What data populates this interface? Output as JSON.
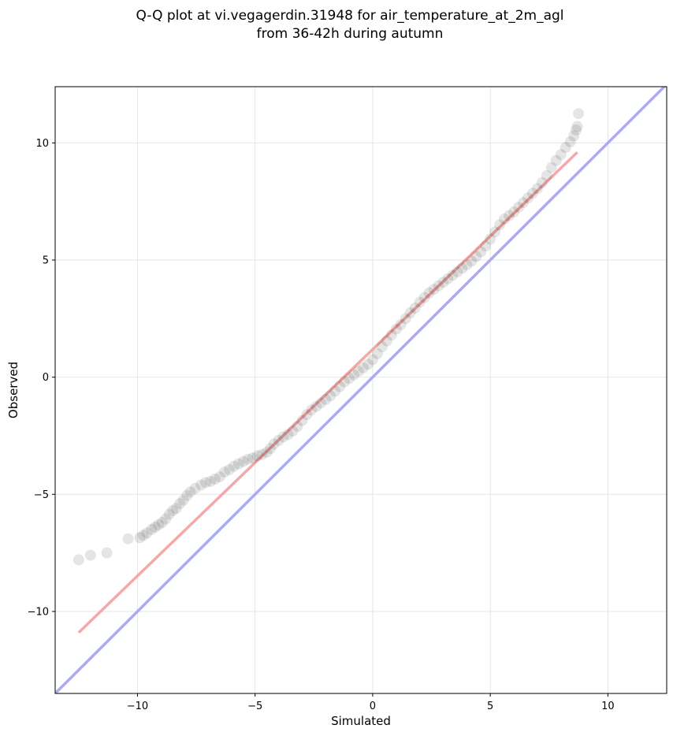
{
  "chart_data": {
    "type": "scatter",
    "title_line1": "Q-Q plot at vi.vegagerdin.31948 for air_temperature_at_2m_agl",
    "title_line2": "from 36-42h during autumn",
    "xlabel": "Simulated",
    "ylabel": "Observed",
    "xlim": [
      -13.5,
      12.5
    ],
    "ylim": [
      -13.5,
      12.4
    ],
    "xticks": [
      -10,
      -5,
      0,
      5,
      10
    ],
    "yticks": [
      -10,
      -5,
      0,
      5,
      10
    ],
    "grid": true,
    "identity_line": {
      "color": "#aaaaf5",
      "x": [
        -13.5,
        12.5
      ],
      "y": [
        -13.5,
        12.5
      ]
    },
    "fit_line": {
      "color": "#f5a8a8",
      "x": [
        -12.5,
        8.7
      ],
      "y": [
        -10.9,
        9.6
      ]
    },
    "point_color": "#000000",
    "points": [
      [
        -12.5,
        -7.8
      ],
      [
        -12.0,
        -7.6
      ],
      [
        -11.3,
        -7.5
      ],
      [
        -10.4,
        -6.9
      ],
      [
        -9.9,
        -6.85
      ],
      [
        -9.75,
        -6.75
      ],
      [
        -9.6,
        -6.65
      ],
      [
        -9.4,
        -6.5
      ],
      [
        -9.25,
        -6.4
      ],
      [
        -9.1,
        -6.3
      ],
      [
        -8.95,
        -6.2
      ],
      [
        -8.8,
        -6.05
      ],
      [
        -8.65,
        -5.85
      ],
      [
        -8.5,
        -5.7
      ],
      [
        -8.35,
        -5.6
      ],
      [
        -8.2,
        -5.4
      ],
      [
        -8.05,
        -5.25
      ],
      [
        -7.9,
        -5.05
      ],
      [
        -7.75,
        -4.9
      ],
      [
        -7.55,
        -4.75
      ],
      [
        -7.3,
        -4.6
      ],
      [
        -7.1,
        -4.5
      ],
      [
        -6.9,
        -4.45
      ],
      [
        -6.7,
        -4.35
      ],
      [
        -6.5,
        -4.25
      ],
      [
        -6.3,
        -4.05
      ],
      [
        -6.1,
        -3.95
      ],
      [
        -5.9,
        -3.8
      ],
      [
        -5.7,
        -3.7
      ],
      [
        -5.5,
        -3.6
      ],
      [
        -5.3,
        -3.5
      ],
      [
        -5.1,
        -3.45
      ],
      [
        -4.9,
        -3.35
      ],
      [
        -4.7,
        -3.3
      ],
      [
        -4.5,
        -3.2
      ],
      [
        -4.35,
        -3.05
      ],
      [
        -4.2,
        -2.85
      ],
      [
        -4.0,
        -2.7
      ],
      [
        -3.8,
        -2.55
      ],
      [
        -3.6,
        -2.45
      ],
      [
        -3.4,
        -2.3
      ],
      [
        -3.2,
        -2.1
      ],
      [
        -3.0,
        -1.85
      ],
      [
        -2.8,
        -1.6
      ],
      [
        -2.6,
        -1.4
      ],
      [
        -2.4,
        -1.25
      ],
      [
        -2.2,
        -1.1
      ],
      [
        -2.0,
        -0.95
      ],
      [
        -1.8,
        -0.8
      ],
      [
        -1.6,
        -0.6
      ],
      [
        -1.4,
        -0.4
      ],
      [
        -1.2,
        -0.2
      ],
      [
        -1.0,
        -0.05
      ],
      [
        -0.8,
        0.1
      ],
      [
        -0.6,
        0.25
      ],
      [
        -0.4,
        0.4
      ],
      [
        -0.2,
        0.55
      ],
      [
        0.0,
        0.75
      ],
      [
        0.2,
        1.0
      ],
      [
        0.4,
        1.3
      ],
      [
        0.6,
        1.55
      ],
      [
        0.8,
        1.8
      ],
      [
        1.0,
        2.05
      ],
      [
        1.2,
        2.25
      ],
      [
        1.4,
        2.5
      ],
      [
        1.6,
        2.75
      ],
      [
        1.8,
        2.95
      ],
      [
        2.0,
        3.2
      ],
      [
        2.2,
        3.4
      ],
      [
        2.4,
        3.6
      ],
      [
        2.6,
        3.75
      ],
      [
        2.8,
        3.9
      ],
      [
        3.0,
        4.05
      ],
      [
        3.2,
        4.2
      ],
      [
        3.4,
        4.35
      ],
      [
        3.6,
        4.5
      ],
      [
        3.8,
        4.65
      ],
      [
        4.0,
        4.8
      ],
      [
        4.2,
        4.95
      ],
      [
        4.4,
        5.15
      ],
      [
        4.6,
        5.35
      ],
      [
        4.8,
        5.6
      ],
      [
        5.0,
        5.9
      ],
      [
        5.2,
        6.2
      ],
      [
        5.4,
        6.5
      ],
      [
        5.6,
        6.75
      ],
      [
        5.8,
        6.9
      ],
      [
        6.0,
        7.05
      ],
      [
        6.2,
        7.25
      ],
      [
        6.4,
        7.45
      ],
      [
        6.6,
        7.65
      ],
      [
        6.8,
        7.85
      ],
      [
        7.0,
        8.05
      ],
      [
        7.2,
        8.3
      ],
      [
        7.4,
        8.6
      ],
      [
        7.6,
        8.95
      ],
      [
        7.8,
        9.25
      ],
      [
        8.0,
        9.5
      ],
      [
        8.2,
        9.8
      ],
      [
        8.4,
        10.05
      ],
      [
        8.55,
        10.3
      ],
      [
        8.65,
        10.55
      ],
      [
        8.7,
        10.7
      ],
      [
        8.75,
        11.25
      ]
    ]
  }
}
